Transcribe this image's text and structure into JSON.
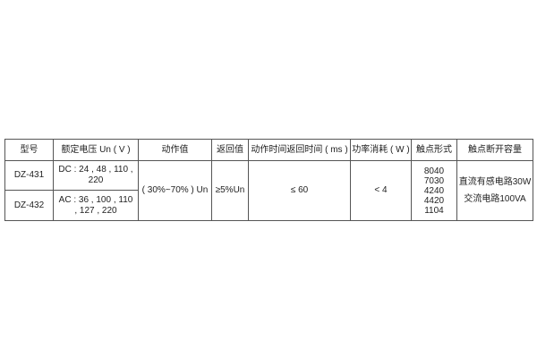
{
  "table": {
    "headers": [
      "型号",
      "额定电压 Un ( V )",
      "动作值",
      "返回值",
      "动作时间返回时间 ( ms )",
      "功率消耗 ( W )",
      "触点形式",
      "触点断开容量"
    ],
    "models": [
      "DZ-431",
      "DZ-432"
    ],
    "rated_voltage": [
      "DC : 24 , 48 , 110 , 220",
      "AC : 36 , 100 , 110 , 127 , 220"
    ],
    "operate_value": "( 30%~70% ) Un",
    "return_value": "≥5%Un",
    "time": "≤ 60",
    "power": "< 4",
    "contact_forms": [
      "8040",
      "7030",
      "4240",
      "4420",
      "1104"
    ],
    "capacity": [
      "直流有感电路30W",
      "交流电路100VA"
    ]
  }
}
